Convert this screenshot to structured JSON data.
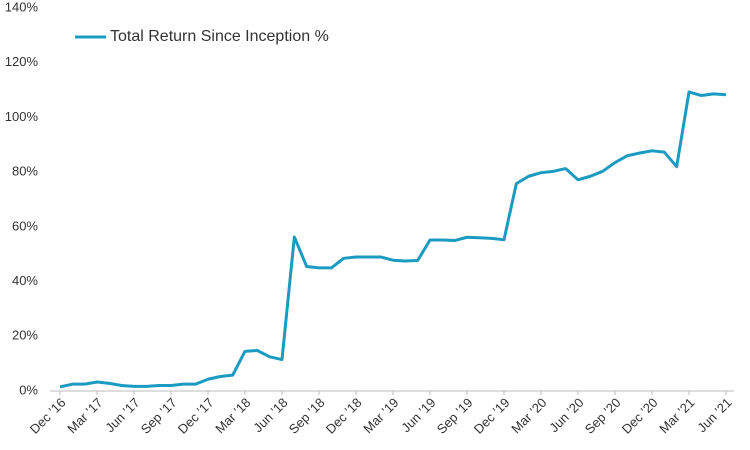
{
  "chart_data": {
    "type": "line",
    "categories": [
      "Dec ’16",
      null,
      null,
      "Mar ’17",
      null,
      null,
      "Jun ’17",
      null,
      null,
      "Sep ’17",
      null,
      null,
      "Dec ’17",
      null,
      null,
      "Mar ’18",
      null,
      null,
      "Jun ’18",
      null,
      null,
      "Sep ’18",
      null,
      null,
      "Dec ’18",
      null,
      null,
      "Mar ’19",
      null,
      null,
      "Jun ’19",
      null,
      null,
      "Sep ’19",
      null,
      null,
      "Dec ’19",
      null,
      null,
      "Mar ’20",
      null,
      null,
      "Jun ’20",
      null,
      null,
      "Sep ’20",
      null,
      null,
      "Dec ’20",
      null,
      null,
      "Mar ’21",
      null,
      null,
      "Jun ’21"
    ],
    "series": [
      {
        "name": "Total Return Since Inception %",
        "color": "#1b9bc2",
        "values": [
          1.5,
          2.5,
          2.5,
          3.3,
          2.8,
          2,
          1.7,
          1.7,
          2,
          2,
          2.5,
          2.5,
          4.3,
          5.3,
          5.8,
          14.5,
          14.8,
          12.5,
          11.5,
          56.3,
          45.5,
          45,
          45,
          48.5,
          49,
          49,
          49,
          47.8,
          47.5,
          47.7,
          55.2,
          55.2,
          55,
          56.2,
          56,
          55.8,
          55.3,
          75.8,
          78.5,
          79.8,
          80.3,
          81.3,
          77.2,
          78.5,
          80.3,
          83.5,
          86,
          87,
          87.8,
          87.3,
          82,
          109.3,
          108,
          108.6,
          108.3
        ]
      }
    ],
    "ylim": [
      0,
      140
    ],
    "yticks": [
      {
        "value": 0,
        "label": "0%"
      },
      {
        "value": 20,
        "label": "20%"
      },
      {
        "value": 40,
        "label": "40%"
      },
      {
        "value": 60,
        "label": "60%"
      },
      {
        "value": 80,
        "label": "80%"
      },
      {
        "value": 100,
        "label": "100%"
      },
      {
        "value": 120,
        "label": "120%"
      },
      {
        "value": 140,
        "label": "140%"
      }
    ],
    "legend": "upper left"
  }
}
